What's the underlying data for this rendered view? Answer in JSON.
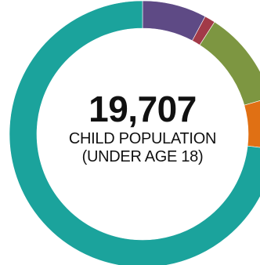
{
  "chart_data": {
    "type": "pie",
    "donut": true,
    "slices": [
      {
        "value": 0.078,
        "color": "#5e4a85"
      },
      {
        "value": 0.013,
        "color": "#a23a48"
      },
      {
        "value": 0.115,
        "color": "#7d9641"
      },
      {
        "value": 0.062,
        "color": "#e07014"
      },
      {
        "value": 0.732,
        "color": "#1ba39c"
      }
    ],
    "center": {
      "value": "19,707",
      "caption_line1": "CHILD POPULATION",
      "caption_line2": "(UNDER AGE 18)"
    }
  }
}
